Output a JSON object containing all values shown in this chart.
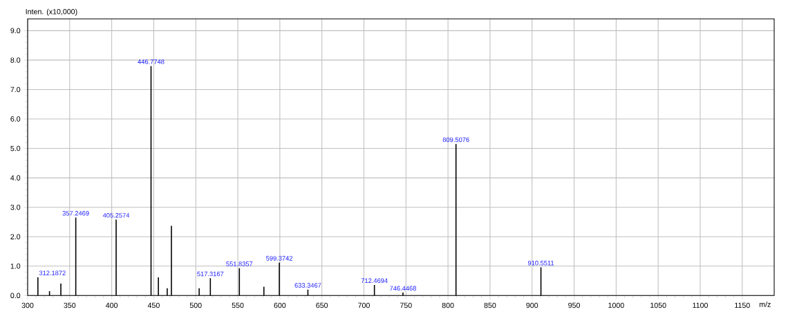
{
  "chart_data": {
    "type": "bar",
    "ylabel": "Inten. (x10,000)",
    "xlabel": "m/z",
    "x": [
      312.19,
      326,
      339.5,
      357.25,
      405.26,
      446.77,
      455.5,
      466,
      471,
      504,
      517.32,
      551.84,
      581,
      599.37,
      633.35,
      712.47,
      746.45,
      809.51,
      910.55
    ],
    "values": [
      0.62,
      0.15,
      0.41,
      2.65,
      2.58,
      7.8,
      0.62,
      0.25,
      2.37,
      0.25,
      0.59,
      0.93,
      0.3,
      1.12,
      0.2,
      0.36,
      0.1,
      5.15,
      0.96
    ],
    "color": "#000000",
    "xlim": [
      300,
      1188
    ],
    "ylim": [
      0,
      9.4
    ],
    "xticks": [
      300,
      350,
      400,
      450,
      500,
      550,
      600,
      650,
      700,
      750,
      800,
      850,
      900,
      950,
      1000,
      1050,
      1100,
      1150
    ],
    "yticks": [
      {
        "value": 0,
        "label": "0.0"
      },
      {
        "value": 1,
        "label": "1.0"
      },
      {
        "value": 2,
        "label": "2.0"
      },
      {
        "value": 3,
        "label": "3.0"
      },
      {
        "value": 4,
        "label": "4.0"
      },
      {
        "value": 5,
        "label": "5.0"
      },
      {
        "value": 6,
        "label": "6.0"
      },
      {
        "value": 7,
        "label": "7.0"
      },
      {
        "value": 8,
        "label": "8.0"
      },
      {
        "value": 9,
        "label": "9.0"
      }
    ],
    "grid": true,
    "annotations": [
      {
        "text": "312.1872",
        "x": 312.19,
        "y": 0.62
      },
      {
        "text": "357.2469",
        "x": 357.25,
        "y": 2.65
      },
      {
        "text": "405.2574",
        "x": 405.26,
        "y": 2.58
      },
      {
        "text": "446.7748",
        "x": 446.77,
        "y": 7.8
      },
      {
        "text": "517.3167",
        "x": 517.32,
        "y": 0.59
      },
      {
        "text": "551.8357",
        "x": 551.84,
        "y": 0.93
      },
      {
        "text": "599.3742",
        "x": 599.37,
        "y": 1.12
      },
      {
        "text": "633.3467",
        "x": 633.35,
        "y": 0.2
      },
      {
        "text": "712.4694",
        "x": 712.47,
        "y": 0.36
      },
      {
        "text": "746.4468",
        "x": 746.45,
        "y": 0.1
      },
      {
        "text": "809.5076",
        "x": 809.51,
        "y": 5.15
      },
      {
        "text": "910.5511",
        "x": 910.55,
        "y": 0.96
      }
    ]
  }
}
